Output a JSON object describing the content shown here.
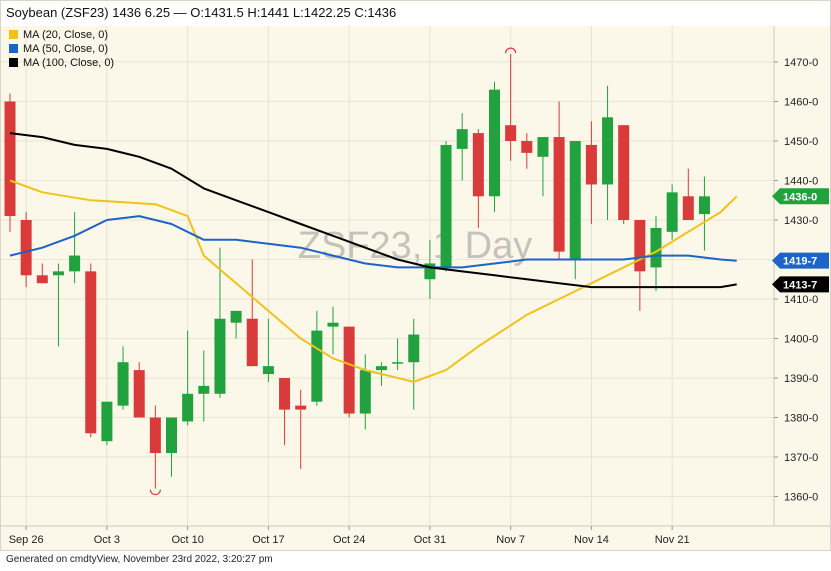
{
  "chart_data": {
    "type": "candlestick",
    "title": "Soybean (ZSF23) 1436 6.25 — O:1431.5 H:1441 L:1422.25 C:1436",
    "watermark": "ZSF23, 1 Day",
    "legend_position": "top-left",
    "legend": [
      {
        "name": "MA (20, Close, 0)",
        "color": "#f2c21a"
      },
      {
        "name": "MA (50, Close, 0)",
        "color": "#1e63c8"
      },
      {
        "name": "MA (100, Close, 0)",
        "color": "#000000"
      }
    ],
    "y_ticks": [
      "1360-0",
      "1370-0",
      "1380-0",
      "1390-0",
      "1400-0",
      "1410-0",
      "1420-0",
      "1430-0",
      "1440-0",
      "1450-0",
      "1460-0",
      "1470-0"
    ],
    "ylim": [
      1355,
      1475
    ],
    "x_ticks": [
      {
        "label": "Sep 26",
        "index": 1
      },
      {
        "label": "Oct 3",
        "index": 6
      },
      {
        "label": "Oct 10",
        "index": 11
      },
      {
        "label": "Oct 17",
        "index": 16
      },
      {
        "label": "Oct 24",
        "index": 21
      },
      {
        "label": "Oct 31",
        "index": 26
      },
      {
        "label": "Nov 7",
        "index": 31
      },
      {
        "label": "Nov 14",
        "index": 36
      },
      {
        "label": "Nov 21",
        "index": 41
      }
    ],
    "grid": true,
    "up_color": "#22a23e",
    "down_color": "#d93a3a",
    "candles": [
      {
        "o": 1460,
        "h": 1462,
        "l": 1427,
        "c": 1431
      },
      {
        "o": 1430,
        "h": 1432,
        "l": 1413,
        "c": 1416
      },
      {
        "o": 1416,
        "h": 1419,
        "l": 1414,
        "c": 1414
      },
      {
        "o": 1416,
        "h": 1419,
        "l": 1398,
        "c": 1417
      },
      {
        "o": 1417,
        "h": 1432,
        "l": 1414,
        "c": 1421
      },
      {
        "o": 1417,
        "h": 1419,
        "l": 1375,
        "c": 1376
      },
      {
        "o": 1374,
        "h": 1384,
        "l": 1373,
        "c": 1384
      },
      {
        "o": 1383,
        "h": 1398,
        "l": 1382,
        "c": 1394
      },
      {
        "o": 1392,
        "h": 1394,
        "l": 1380,
        "c": 1380
      },
      {
        "o": 1380,
        "h": 1383,
        "l": 1362,
        "c": 1371
      },
      {
        "o": 1371,
        "h": 1380,
        "l": 1365,
        "c": 1380
      },
      {
        "o": 1379,
        "h": 1402,
        "l": 1378,
        "c": 1386
      },
      {
        "o": 1386,
        "h": 1397,
        "l": 1379,
        "c": 1388
      },
      {
        "o": 1386,
        "h": 1423,
        "l": 1385,
        "c": 1405
      },
      {
        "o": 1404,
        "h": 1406,
        "l": 1400,
        "c": 1407
      },
      {
        "o": 1405,
        "h": 1420,
        "l": 1393,
        "c": 1393
      },
      {
        "o": 1391,
        "h": 1405,
        "l": 1389,
        "c": 1393
      },
      {
        "o": 1390,
        "h": 1390,
        "l": 1373,
        "c": 1382
      },
      {
        "o": 1383,
        "h": 1387,
        "l": 1367,
        "c": 1382
      },
      {
        "o": 1384,
        "h": 1407,
        "l": 1383,
        "c": 1402
      },
      {
        "o": 1403,
        "h": 1408,
        "l": 1396,
        "c": 1404
      },
      {
        "o": 1403,
        "h": 1403,
        "l": 1380,
        "c": 1381
      },
      {
        "o": 1381,
        "h": 1396,
        "l": 1377,
        "c": 1392
      },
      {
        "o": 1392,
        "h": 1394,
        "l": 1388,
        "c": 1393
      },
      {
        "o": 1394,
        "h": 1400,
        "l": 1392,
        "c": 1394
      },
      {
        "o": 1394,
        "h": 1405,
        "l": 1382,
        "c": 1401
      },
      {
        "o": 1415,
        "h": 1425,
        "l": 1410,
        "c": 1419
      },
      {
        "o": 1418,
        "h": 1450,
        "l": 1417,
        "c": 1449
      },
      {
        "o": 1448,
        "h": 1457,
        "l": 1440,
        "c": 1453
      },
      {
        "o": 1452,
        "h": 1453,
        "l": 1428,
        "c": 1436
      },
      {
        "o": 1436,
        "h": 1465,
        "l": 1432,
        "c": 1463
      },
      {
        "o": 1454,
        "h": 1472,
        "l": 1445,
        "c": 1450
      },
      {
        "o": 1450,
        "h": 1452,
        "l": 1443,
        "c": 1447
      },
      {
        "o": 1446,
        "h": 1451,
        "l": 1436,
        "c": 1451
      },
      {
        "o": 1451,
        "h": 1460,
        "l": 1420,
        "c": 1422
      },
      {
        "o": 1420,
        "h": 1450,
        "l": 1415,
        "c": 1450
      },
      {
        "o": 1449,
        "h": 1455,
        "l": 1429,
        "c": 1439
      },
      {
        "o": 1439,
        "h": 1464,
        "l": 1430,
        "c": 1456
      },
      {
        "o": 1454,
        "h": 1454,
        "l": 1429,
        "c": 1430
      },
      {
        "o": 1430,
        "h": 1430,
        "l": 1407,
        "c": 1417
      },
      {
        "o": 1418,
        "h": 1431,
        "l": 1412,
        "c": 1428
      },
      {
        "o": 1427,
        "h": 1439,
        "l": 1425,
        "c": 1437
      },
      {
        "o": 1436,
        "h": 1443,
        "l": 1430,
        "c": 1430
      },
      {
        "o": 1431.5,
        "h": 1441,
        "l": 1422.25,
        "c": 1436
      }
    ],
    "series": [
      {
        "name": "MA (20, Close, 0)",
        "color": "#f2c21a",
        "points": [
          [
            0,
            1440
          ],
          [
            2,
            1437
          ],
          [
            5,
            1435
          ],
          [
            9,
            1434
          ],
          [
            11,
            1431
          ],
          [
            12,
            1421
          ],
          [
            14,
            1414
          ],
          [
            16,
            1407
          ],
          [
            18,
            1400
          ],
          [
            20,
            1395
          ],
          [
            22,
            1392
          ],
          [
            25,
            1389
          ],
          [
            27,
            1392
          ],
          [
            29,
            1398
          ],
          [
            32,
            1406
          ],
          [
            35,
            1412
          ],
          [
            37,
            1416
          ],
          [
            40,
            1422
          ],
          [
            42,
            1427
          ],
          [
            44,
            1432
          ],
          [
            45,
            1436
          ]
        ]
      },
      {
        "name": "MA (50, Close, 0)",
        "color": "#1e63c8",
        "points": [
          [
            0,
            1421
          ],
          [
            2,
            1423
          ],
          [
            4,
            1426
          ],
          [
            6,
            1430
          ],
          [
            8,
            1431
          ],
          [
            10,
            1429
          ],
          [
            12,
            1425
          ],
          [
            14,
            1425
          ],
          [
            16,
            1424
          ],
          [
            18,
            1423
          ],
          [
            20,
            1421
          ],
          [
            22,
            1419
          ],
          [
            24,
            1418
          ],
          [
            26,
            1418
          ],
          [
            28,
            1418
          ],
          [
            30,
            1419
          ],
          [
            32,
            1420
          ],
          [
            34,
            1420
          ],
          [
            36,
            1420
          ],
          [
            38,
            1420
          ],
          [
            40,
            1421
          ],
          [
            42,
            1421
          ],
          [
            44,
            1420
          ],
          [
            45,
            1419.7
          ]
        ]
      },
      {
        "name": "MA (100, Close, 0)",
        "color": "#000000",
        "points": [
          [
            0,
            1452
          ],
          [
            2,
            1451
          ],
          [
            4,
            1449
          ],
          [
            6,
            1448
          ],
          [
            8,
            1446
          ],
          [
            10,
            1443
          ],
          [
            12,
            1438
          ],
          [
            14,
            1435
          ],
          [
            16,
            1432
          ],
          [
            18,
            1429
          ],
          [
            20,
            1426
          ],
          [
            22,
            1423
          ],
          [
            24,
            1420
          ],
          [
            26,
            1418
          ],
          [
            28,
            1417
          ],
          [
            30,
            1416
          ],
          [
            32,
            1415
          ],
          [
            34,
            1414
          ],
          [
            36,
            1413
          ],
          [
            38,
            1413
          ],
          [
            40,
            1413
          ],
          [
            42,
            1413
          ],
          [
            44,
            1413
          ],
          [
            45,
            1413.7
          ]
        ]
      }
    ],
    "price_tags": [
      {
        "label": "1436-0",
        "value": 1436,
        "color": "#22a23e"
      },
      {
        "label": "1419-7",
        "value": 1419.7,
        "color": "#1e63c8"
      },
      {
        "label": "1413-7",
        "value": 1413.7,
        "color": "#000000"
      }
    ],
    "high_marker": {
      "index": 31,
      "value": 1472
    },
    "low_marker": {
      "index": 9,
      "value": 1362
    }
  },
  "footer": "Generated on cmdtyView, November 23rd 2022, 3:20:27 pm"
}
